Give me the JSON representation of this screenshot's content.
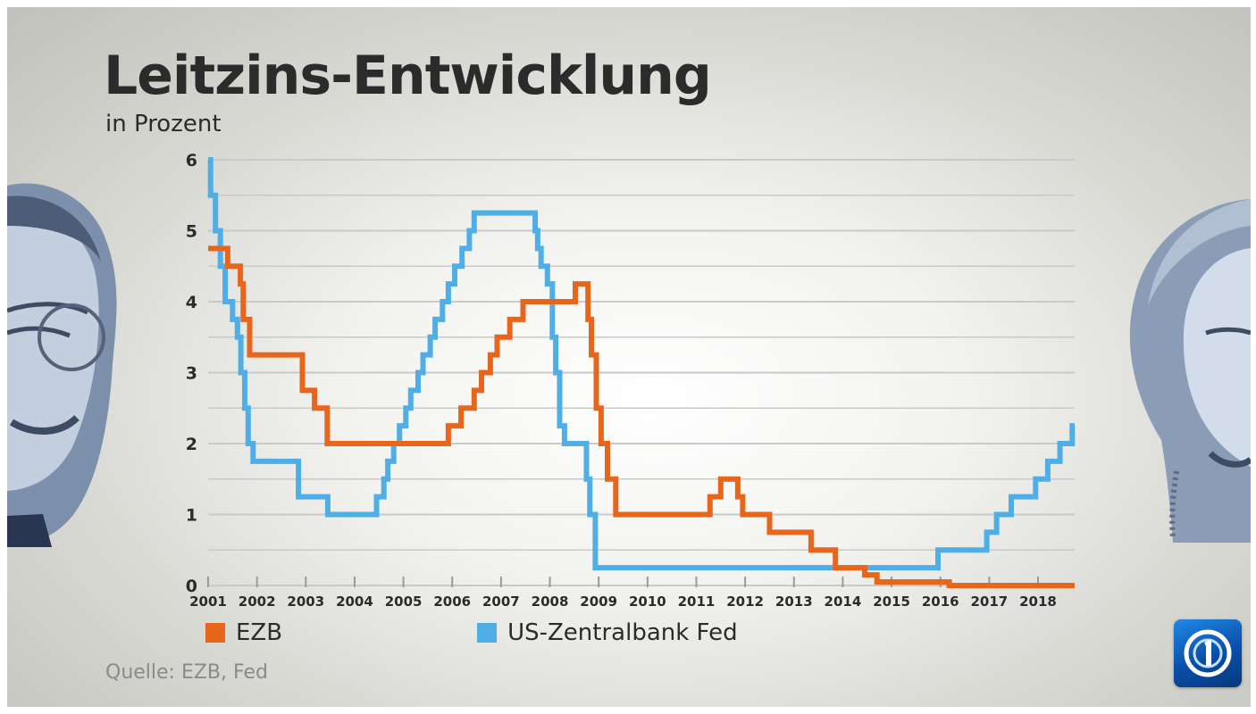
{
  "colors": {
    "ezb": "#e8661c",
    "fed": "#4eaee5",
    "grid": "#c9c9c9",
    "text": "#2b2b2b",
    "source": "#8a8a8a"
  },
  "icons": {
    "logo": "broadcaster-logo-icon",
    "left_portrait": "portrait-left-icon",
    "right_portrait": "portrait-right-icon"
  },
  "chart_data": {
    "type": "line",
    "title": "Leitzins-Entwicklung",
    "subtitle": "in Prozent",
    "source": "Quelle: EZB, Fed",
    "xlabel": "",
    "ylabel": "",
    "xlim": [
      2001,
      2018.75
    ],
    "ylim": [
      0,
      6
    ],
    "y_ticks": [
      0,
      1,
      2,
      3,
      4,
      5,
      6
    ],
    "x_ticks": [
      2001,
      2002,
      2003,
      2004,
      2005,
      2006,
      2007,
      2008,
      2009,
      2010,
      2011,
      2012,
      2013,
      2014,
      2015,
      2016,
      2017,
      2018
    ],
    "x_tick_labels": [
      "2001",
      "2002",
      "2003",
      "2004",
      "2005",
      "2006",
      "2007",
      "2008",
      "2009",
      "2010",
      "2011",
      "2012",
      "2013",
      "2014",
      "2015",
      "2016",
      "2017",
      "2018"
    ],
    "y_tick_labels": [
      "0",
      "1",
      "2",
      "3",
      "4",
      "5",
      "6"
    ],
    "grid": true,
    "legend_position": "bottom",
    "series": [
      {
        "name": "EZB",
        "step": true,
        "points": [
          [
            2001.0,
            4.75
          ],
          [
            2001.4,
            4.5
          ],
          [
            2001.66,
            4.25
          ],
          [
            2001.72,
            3.75
          ],
          [
            2001.85,
            3.25
          ],
          [
            2002.93,
            2.75
          ],
          [
            2003.18,
            2.5
          ],
          [
            2003.44,
            2.0
          ],
          [
            2005.92,
            2.25
          ],
          [
            2006.18,
            2.5
          ],
          [
            2006.45,
            2.75
          ],
          [
            2006.6,
            3.0
          ],
          [
            2006.78,
            3.25
          ],
          [
            2006.92,
            3.5
          ],
          [
            2007.18,
            3.75
          ],
          [
            2007.45,
            4.0
          ],
          [
            2008.52,
            4.25
          ],
          [
            2008.78,
            3.75
          ],
          [
            2008.85,
            3.25
          ],
          [
            2008.95,
            2.5
          ],
          [
            2009.05,
            2.0
          ],
          [
            2009.18,
            1.5
          ],
          [
            2009.35,
            1.0
          ],
          [
            2011.28,
            1.25
          ],
          [
            2011.5,
            1.5
          ],
          [
            2011.85,
            1.25
          ],
          [
            2011.95,
            1.0
          ],
          [
            2012.5,
            0.75
          ],
          [
            2013.35,
            0.5
          ],
          [
            2013.85,
            0.25
          ],
          [
            2014.45,
            0.15
          ],
          [
            2014.7,
            0.05
          ],
          [
            2016.18,
            0.0
          ],
          [
            2018.75,
            0.0
          ]
        ]
      },
      {
        "name": "US-Zentralbank Fed",
        "step": true,
        "points": [
          [
            2001.0,
            6.0
          ],
          [
            2001.05,
            5.5
          ],
          [
            2001.15,
            5.0
          ],
          [
            2001.25,
            4.5
          ],
          [
            2001.35,
            4.0
          ],
          [
            2001.5,
            3.75
          ],
          [
            2001.6,
            3.5
          ],
          [
            2001.67,
            3.0
          ],
          [
            2001.75,
            2.5
          ],
          [
            2001.82,
            2.0
          ],
          [
            2001.92,
            1.75
          ],
          [
            2002.85,
            1.25
          ],
          [
            2003.45,
            1.0
          ],
          [
            2004.45,
            1.25
          ],
          [
            2004.6,
            1.5
          ],
          [
            2004.68,
            1.75
          ],
          [
            2004.8,
            2.0
          ],
          [
            2004.92,
            2.25
          ],
          [
            2005.05,
            2.5
          ],
          [
            2005.15,
            2.75
          ],
          [
            2005.3,
            3.0
          ],
          [
            2005.4,
            3.25
          ],
          [
            2005.55,
            3.5
          ],
          [
            2005.65,
            3.75
          ],
          [
            2005.8,
            4.0
          ],
          [
            2005.92,
            4.25
          ],
          [
            2006.05,
            4.5
          ],
          [
            2006.2,
            4.75
          ],
          [
            2006.35,
            5.0
          ],
          [
            2006.45,
            5.25
          ],
          [
            2007.7,
            5.0
          ],
          [
            2007.75,
            4.75
          ],
          [
            2007.82,
            4.5
          ],
          [
            2007.95,
            4.25
          ],
          [
            2008.05,
            3.5
          ],
          [
            2008.12,
            3.0
          ],
          [
            2008.2,
            2.25
          ],
          [
            2008.3,
            2.0
          ],
          [
            2008.75,
            1.5
          ],
          [
            2008.82,
            1.0
          ],
          [
            2008.93,
            0.25
          ],
          [
            2015.95,
            0.5
          ],
          [
            2016.95,
            0.75
          ],
          [
            2017.15,
            1.0
          ],
          [
            2017.45,
            1.25
          ],
          [
            2017.95,
            1.5
          ],
          [
            2018.2,
            1.75
          ],
          [
            2018.45,
            2.0
          ],
          [
            2018.7,
            2.25
          ],
          [
            2018.75,
            2.25
          ]
        ]
      }
    ]
  }
}
